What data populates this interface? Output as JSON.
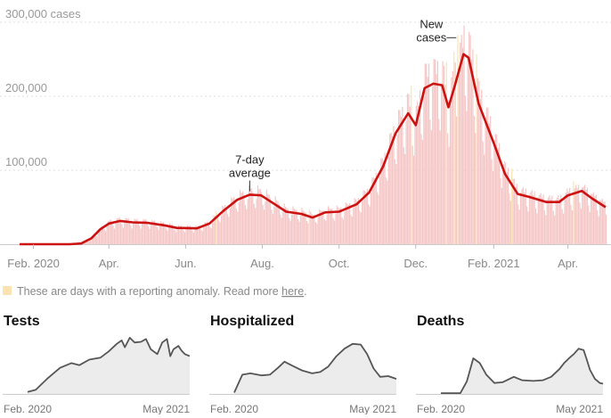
{
  "colors": {
    "average_line": "#cc1111",
    "daily_bar": "#f5c6c6",
    "anomaly_bar": "#fbe3b0",
    "small_line": "#555555",
    "small_fill": "#ececec",
    "grid": "#dddddd",
    "text_muted": "#888888"
  },
  "note": {
    "text": "These are days with a reporting anomaly. Read more ",
    "link": "here",
    "end": "."
  },
  "chart_data": [
    {
      "type": "bar",
      "overlay": "line",
      "x_unit": "date",
      "xlim": [
        "2020-01-21",
        "2021-05-01"
      ],
      "ylim": [
        0,
        300000
      ],
      "yticks": [
        {
          "value": 100000,
          "label": "100,000"
        },
        {
          "value": 200000,
          "label": "200,000"
        },
        {
          "value": 300000,
          "label": "300,000 cases"
        }
      ],
      "xticks": [
        {
          "date": "2020-02-01",
          "label": "Feb. 2020"
        },
        {
          "date": "2020-04-01",
          "label": "Apr."
        },
        {
          "date": "2020-06-01",
          "label": "Jun."
        },
        {
          "date": "2020-08-01",
          "label": "Aug."
        },
        {
          "date": "2020-10-01",
          "label": "Oct."
        },
        {
          "date": "2020-12-01",
          "label": "Dec."
        },
        {
          "date": "2021-02-01",
          "label": "Feb. 2021"
        },
        {
          "date": "2021-04-01",
          "label": "Apr."
        }
      ],
      "annotations": [
        {
          "line1": "7-day",
          "line2": "average",
          "date": "2020-07-22",
          "value": 68000
        },
        {
          "line1": "New",
          "line2": "cases",
          "date": "2020-12-29",
          "value": 290000
        }
      ],
      "grid": true,
      "series": [
        {
          "name": "7-day average",
          "points": [
            [
              "2020-01-21",
              0
            ],
            [
              "2020-03-01",
              0
            ],
            [
              "2020-03-10",
              1000
            ],
            [
              "2020-03-18",
              8000
            ],
            [
              "2020-03-25",
              20000
            ],
            [
              "2020-04-01",
              28000
            ],
            [
              "2020-04-10",
              31500
            ],
            [
              "2020-04-20",
              29500
            ],
            [
              "2020-05-01",
              29000
            ],
            [
              "2020-05-15",
              25500
            ],
            [
              "2020-05-25",
              22000
            ],
            [
              "2020-06-10",
              21500
            ],
            [
              "2020-06-20",
              28000
            ],
            [
              "2020-07-01",
              45000
            ],
            [
              "2020-07-12",
              60000
            ],
            [
              "2020-07-22",
              67000
            ],
            [
              "2020-07-31",
              66000
            ],
            [
              "2020-08-10",
              55000
            ],
            [
              "2020-08-20",
              44000
            ],
            [
              "2020-09-01",
              41000
            ],
            [
              "2020-09-10",
              36000
            ],
            [
              "2020-09-20",
              43000
            ],
            [
              "2020-10-01",
              44000
            ],
            [
              "2020-10-15",
              54000
            ],
            [
              "2020-10-25",
              70000
            ],
            [
              "2020-11-05",
              105000
            ],
            [
              "2020-11-15",
              150000
            ],
            [
              "2020-11-25",
              177000
            ],
            [
              "2020-12-01",
              161000
            ],
            [
              "2020-12-08",
              211000
            ],
            [
              "2020-12-15",
              217000
            ],
            [
              "2020-12-22",
              215000
            ],
            [
              "2020-12-27",
              185000
            ],
            [
              "2021-01-01",
              214000
            ],
            [
              "2021-01-08",
              257000
            ],
            [
              "2021-01-12",
              252000
            ],
            [
              "2021-01-20",
              190000
            ],
            [
              "2021-02-01",
              137000
            ],
            [
              "2021-02-10",
              95000
            ],
            [
              "2021-02-20",
              68000
            ],
            [
              "2021-03-01",
              64000
            ],
            [
              "2021-03-15",
              57000
            ],
            [
              "2021-03-25",
              57000
            ],
            [
              "2021-04-01",
              66000
            ],
            [
              "2021-04-12",
              72000
            ],
            [
              "2021-04-20",
              62000
            ],
            [
              "2021-05-01",
              50000
            ]
          ]
        },
        {
          "name": "New cases",
          "anomalies": [
            "2020-06-25",
            "2020-09-07",
            "2020-11-27",
            "2020-12-25",
            "2020-12-31",
            "2021-01-03",
            "2021-01-18",
            "2021-02-15",
            "2021-04-05"
          ]
        }
      ]
    },
    {
      "type": "area",
      "title": "Tests",
      "xticks": [
        "Feb. 2020",
        "May 2021"
      ],
      "x_unit": "fraction of time span",
      "ylim": [
        0,
        1
      ],
      "series": [
        {
          "points": [
            [
              0,
              0.03
            ],
            [
              0.05,
              0.06
            ],
            [
              0.12,
              0.22
            ],
            [
              0.2,
              0.38
            ],
            [
              0.27,
              0.45
            ],
            [
              0.32,
              0.42
            ],
            [
              0.38,
              0.5
            ],
            [
              0.45,
              0.53
            ],
            [
              0.5,
              0.62
            ],
            [
              0.55,
              0.73
            ],
            [
              0.58,
              0.78
            ],
            [
              0.6,
              0.68
            ],
            [
              0.63,
              0.82
            ],
            [
              0.66,
              0.75
            ],
            [
              0.7,
              0.76
            ],
            [
              0.73,
              0.8
            ],
            [
              0.76,
              0.65
            ],
            [
              0.8,
              0.58
            ],
            [
              0.83,
              0.75
            ],
            [
              0.86,
              0.8
            ],
            [
              0.88,
              0.55
            ],
            [
              0.9,
              0.65
            ],
            [
              0.93,
              0.7
            ],
            [
              0.95,
              0.63
            ],
            [
              0.97,
              0.58
            ],
            [
              1.0,
              0.55
            ]
          ]
        }
      ]
    },
    {
      "type": "area",
      "title": "Hospitalized",
      "xticks": [
        "Feb. 2020",
        "May 2021"
      ],
      "x_unit": "fraction of time span",
      "ylim": [
        0,
        1
      ],
      "series": [
        {
          "points": [
            [
              0,
              0.02
            ],
            [
              0.05,
              0.28
            ],
            [
              0.1,
              0.3
            ],
            [
              0.17,
              0.27
            ],
            [
              0.22,
              0.28
            ],
            [
              0.27,
              0.38
            ],
            [
              0.31,
              0.47
            ],
            [
              0.36,
              0.41
            ],
            [
              0.42,
              0.34
            ],
            [
              0.48,
              0.3
            ],
            [
              0.53,
              0.32
            ],
            [
              0.58,
              0.4
            ],
            [
              0.63,
              0.55
            ],
            [
              0.68,
              0.66
            ],
            [
              0.73,
              0.73
            ],
            [
              0.78,
              0.72
            ],
            [
              0.82,
              0.58
            ],
            [
              0.86,
              0.37
            ],
            [
              0.9,
              0.25
            ],
            [
              0.95,
              0.26
            ],
            [
              1.0,
              0.22
            ]
          ]
        }
      ]
    },
    {
      "type": "area",
      "title": "Deaths",
      "xticks": [
        "Feb. 2020",
        "May 2021"
      ],
      "x_unit": "fraction of time span",
      "ylim": [
        0,
        1
      ],
      "series": [
        {
          "points": [
            [
              0,
              0.01
            ],
            [
              0.12,
              0.01
            ],
            [
              0.16,
              0.18
            ],
            [
              0.2,
              0.52
            ],
            [
              0.24,
              0.45
            ],
            [
              0.28,
              0.28
            ],
            [
              0.33,
              0.16
            ],
            [
              0.38,
              0.17
            ],
            [
              0.45,
              0.25
            ],
            [
              0.5,
              0.2
            ],
            [
              0.57,
              0.19
            ],
            [
              0.63,
              0.2
            ],
            [
              0.68,
              0.25
            ],
            [
              0.73,
              0.36
            ],
            [
              0.76,
              0.45
            ],
            [
              0.79,
              0.52
            ],
            [
              0.82,
              0.58
            ],
            [
              0.85,
              0.66
            ],
            [
              0.88,
              0.64
            ],
            [
              0.9,
              0.5
            ],
            [
              0.92,
              0.35
            ],
            [
              0.95,
              0.22
            ],
            [
              0.98,
              0.16
            ],
            [
              1.0,
              0.15
            ]
          ]
        }
      ]
    }
  ]
}
